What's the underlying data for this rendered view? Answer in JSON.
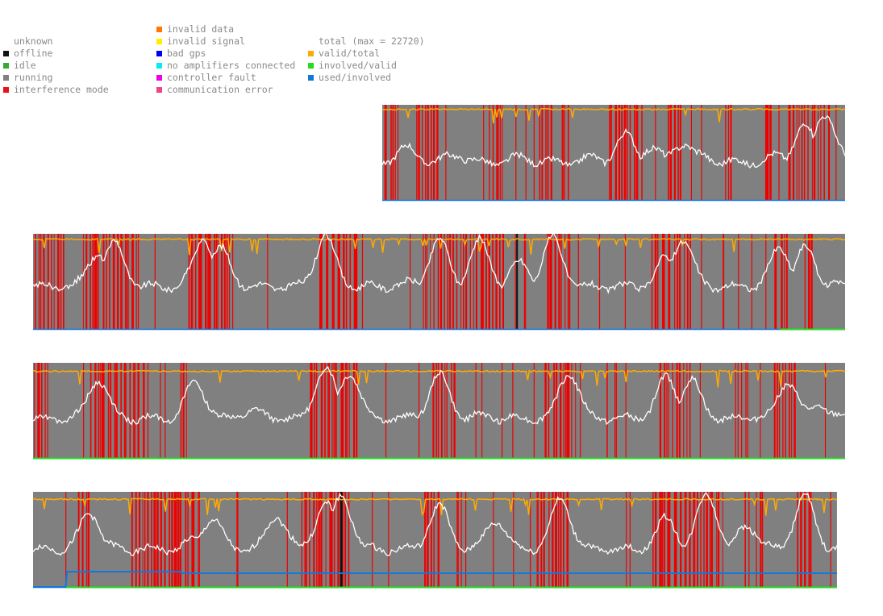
{
  "legend": {
    "columns": [
      [
        {
          "label": "unknown",
          "color": ""
        },
        {
          "label": "offline",
          "color": "#111111"
        },
        {
          "label": "idle",
          "color": "#33aa33"
        },
        {
          "label": "running",
          "color": "#808080"
        },
        {
          "label": "interference mode",
          "color": "#ee1111"
        }
      ],
      [
        {
          "label": "invalid data",
          "color": "#ff7700"
        },
        {
          "label": "invalid signal",
          "color": "#ffee00"
        },
        {
          "label": "bad gps",
          "color": "#0000ee"
        },
        {
          "label": "no amplifiers connected",
          "color": "#00eeee"
        },
        {
          "label": "controller fault",
          "color": "#ee00ee"
        },
        {
          "label": "communication error",
          "color": "#ee4488"
        }
      ],
      [
        {
          "label": "total (max = 22720)",
          "color": ""
        },
        {
          "label": "valid/total",
          "color": "#ffaa00"
        },
        {
          "label": "involved/valid",
          "color": "#22dd22"
        },
        {
          "label": "used/involved",
          "color": "#1177dd"
        }
      ]
    ]
  },
  "colors": {
    "running": "#808080",
    "interference": "#ee0000",
    "offline": "#111111",
    "valid_total": "#ffaa00",
    "total": "#ffffff",
    "involved_valid": "#22dd22",
    "used_involved": "#1177dd"
  },
  "chart_data": [
    {
      "type": "line",
      "span": [
        0.43,
        1.0
      ],
      "valid_total_level": 0.96,
      "total_peaks": [
        [
          0.46,
          0.55
        ],
        [
          0.48,
          0.42
        ],
        [
          0.52,
          0.48
        ],
        [
          0.55,
          0.3
        ],
        [
          0.6,
          0.45
        ],
        [
          0.64,
          0.38
        ],
        [
          0.69,
          0.45
        ],
        [
          0.73,
          0.68
        ],
        [
          0.76,
          0.55
        ],
        [
          0.8,
          0.6
        ],
        [
          0.82,
          0.48
        ],
        [
          0.86,
          0.4
        ],
        [
          0.92,
          0.48
        ],
        [
          0.95,
          0.78
        ],
        [
          0.975,
          0.92
        ]
      ],
      "total_base": 0.4,
      "interference": [
        [
          0.43,
          0.445
        ],
        [
          0.47,
          0.5
        ],
        [
          0.56,
          0.58
        ],
        [
          0.62,
          0.64
        ],
        [
          0.65,
          0.66
        ],
        [
          0.71,
          0.75
        ],
        [
          0.78,
          0.8
        ],
        [
          0.85,
          0.86
        ],
        [
          0.9,
          0.91
        ],
        [
          0.93,
          0.98
        ]
      ],
      "offline": [],
      "involved_valid": [],
      "used_involved": []
    },
    {
      "type": "line",
      "span": [
        0.0,
        1.0
      ],
      "valid_total_level": 0.95,
      "total_peaks": [
        [
          0.08,
          0.8
        ],
        [
          0.1,
          0.9
        ],
        [
          0.2,
          0.45
        ],
        [
          0.21,
          0.95
        ],
        [
          0.23,
          0.85
        ],
        [
          0.34,
          0.2
        ],
        [
          0.36,
          0.98
        ],
        [
          0.47,
          0.5
        ],
        [
          0.5,
          0.93
        ],
        [
          0.55,
          0.92
        ],
        [
          0.6,
          0.7
        ],
        [
          0.64,
          0.95
        ],
        [
          0.7,
          0.35
        ],
        [
          0.78,
          0.75
        ],
        [
          0.8,
          0.95
        ],
        [
          0.87,
          0.4
        ],
        [
          0.92,
          0.85
        ],
        [
          0.95,
          0.85
        ],
        [
          0.98,
          0.5
        ]
      ],
      "total_base": 0.45,
      "interference": [
        [
          0.0,
          0.04
        ],
        [
          0.06,
          0.13
        ],
        [
          0.19,
          0.24
        ],
        [
          0.35,
          0.4
        ],
        [
          0.48,
          0.58
        ],
        [
          0.63,
          0.66
        ],
        [
          0.76,
          0.81
        ],
        [
          0.91,
          0.93
        ],
        [
          0.95,
          0.96
        ]
      ],
      "offline": [
        [
          0.595,
          0.597
        ]
      ],
      "involved_valid": [
        [
          0.92,
          1.0
        ]
      ],
      "used_involved": []
    },
    {
      "type": "line",
      "span": [
        0.0,
        1.0
      ],
      "valid_total_level": 0.92,
      "total_peaks": [
        [
          0.08,
          0.82
        ],
        [
          0.2,
          0.8
        ],
        [
          0.27,
          0.5
        ],
        [
          0.36,
          0.95
        ],
        [
          0.39,
          0.9
        ],
        [
          0.44,
          0.35
        ],
        [
          0.5,
          0.88
        ],
        [
          0.55,
          0.45
        ],
        [
          0.66,
          0.9
        ],
        [
          0.78,
          0.85
        ],
        [
          0.81,
          0.82
        ],
        [
          0.9,
          0.45
        ],
        [
          0.93,
          0.8
        ],
        [
          0.97,
          0.55
        ]
      ],
      "total_base": 0.42,
      "interference": [
        [
          0.0,
          0.02
        ],
        [
          0.07,
          0.14
        ],
        [
          0.18,
          0.19
        ],
        [
          0.34,
          0.4
        ],
        [
          0.49,
          0.52
        ],
        [
          0.63,
          0.67
        ],
        [
          0.77,
          0.81
        ],
        [
          0.91,
          0.94
        ]
      ],
      "offline": [],
      "involved_valid": [
        [
          0.0,
          1.0
        ]
      ],
      "used_involved": []
    },
    {
      "type": "line",
      "span": [
        0.0,
        0.99
      ],
      "valid_total_level": 0.93,
      "total_peaks": [
        [
          0.07,
          0.78
        ],
        [
          0.14,
          0.4
        ],
        [
          0.2,
          0.5
        ],
        [
          0.22,
          0.72
        ],
        [
          0.3,
          0.75
        ],
        [
          0.36,
          0.88
        ],
        [
          0.38,
          0.95
        ],
        [
          0.44,
          0.35
        ],
        [
          0.5,
          0.85
        ],
        [
          0.57,
          0.7
        ],
        [
          0.65,
          0.92
        ],
        [
          0.7,
          0.4
        ],
        [
          0.78,
          0.72
        ],
        [
          0.83,
          0.98
        ],
        [
          0.88,
          0.65
        ],
        [
          0.95,
          0.95
        ],
        [
          0.99,
          0.35
        ]
      ],
      "total_base": 0.4,
      "interference": [
        [
          0.055,
          0.07
        ],
        [
          0.12,
          0.2
        ],
        [
          0.33,
          0.39
        ],
        [
          0.48,
          0.5
        ],
        [
          0.62,
          0.66
        ],
        [
          0.76,
          0.85
        ],
        [
          0.89,
          0.9
        ],
        [
          0.94,
          0.96
        ]
      ],
      "offline": [
        [
          0.378,
          0.381
        ]
      ],
      "involved_valid": [
        [
          0.04,
          0.99
        ]
      ],
      "used_involved": [
        [
          0.04,
          0.99
        ]
      ]
    }
  ]
}
